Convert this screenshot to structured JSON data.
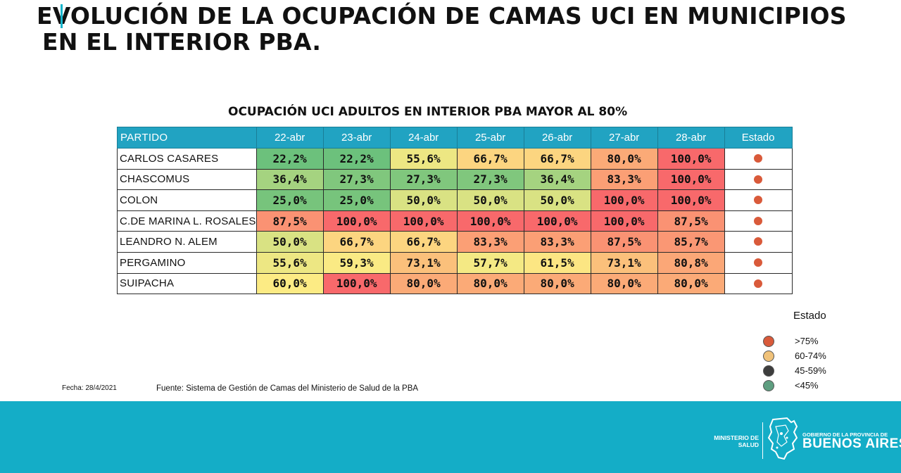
{
  "header": {
    "title_line1": "EVOLUCIÓN DE LA OCUPACIÓN DE CAMAS UCI EN MUNICIPIOS",
    "title_line2": "EN EL INTERIOR PBA."
  },
  "chart_data": {
    "type": "table",
    "title": "OCUPACIÓN UCI ADULTOS EN INTERIOR PBA MAYOR AL 80%",
    "columns": [
      "PARTIDO",
      "22-abr",
      "23-abr",
      "24-abr",
      "25-abr",
      "26-abr",
      "27-abr",
      "28-abr",
      "Estado"
    ],
    "rows": [
      {
        "partido": "CARLOS CASARES",
        "values": [
          "22,2%",
          "22,2%",
          "55,6%",
          "66,7%",
          "66,7%",
          "80,0%",
          "100,0%"
        ],
        "estado": ">75%"
      },
      {
        "partido": "CHASCOMUS",
        "values": [
          "36,4%",
          "27,3%",
          "27,3%",
          "27,3%",
          "36,4%",
          "83,3%",
          "100,0%"
        ],
        "estado": ">75%"
      },
      {
        "partido": "COLON",
        "values": [
          "25,0%",
          "25,0%",
          "50,0%",
          "50,0%",
          "50,0%",
          "100,0%",
          "100,0%"
        ],
        "estado": ">75%"
      },
      {
        "partido": "C.DE MARINA L. ROSALES",
        "values": [
          "87,5%",
          "100,0%",
          "100,0%",
          "100,0%",
          "100,0%",
          "100,0%",
          "87,5%"
        ],
        "estado": ">75%"
      },
      {
        "partido": "LEANDRO N. ALEM",
        "values": [
          "50,0%",
          "66,7%",
          "66,7%",
          "83,3%",
          "83,3%",
          "87,5%",
          "85,7%"
        ],
        "estado": ">75%"
      },
      {
        "partido": "PERGAMINO",
        "values": [
          "55,6%",
          "59,3%",
          "73,1%",
          "57,7%",
          "61,5%",
          "73,1%",
          "80,8%"
        ],
        "estado": ">75%"
      },
      {
        "partido": "SUIPACHA",
        "values": [
          "60,0%",
          "100,0%",
          "80,0%",
          "80,0%",
          "80,0%",
          "80,0%",
          "80,0%"
        ],
        "estado": ">75%"
      }
    ],
    "header_color": "#21a3c2"
  },
  "legend": {
    "title": "Estado",
    "items": [
      {
        "label": ">75%",
        "color": "#d95a3a"
      },
      {
        "label": "60-74%",
        "color": "#f0c27a"
      },
      {
        "label": "45-59%",
        "color": "#3d3d3d"
      },
      {
        "label": "<45%",
        "color": "#5e9e80"
      }
    ]
  },
  "footnotes": {
    "date": "Fecha:  28/4/2021",
    "source": "Fuente: Sistema de Gestión de Camas del Ministerio de Salud de la PBA"
  },
  "footer": {
    "ministerio": "MINISTERIO DE SALUD",
    "gobierno_small": "GOBIERNO DE LA PROVINCIA DE",
    "gobierno_big": "BUENOS AIRES",
    "background_color": "#14adc7"
  }
}
